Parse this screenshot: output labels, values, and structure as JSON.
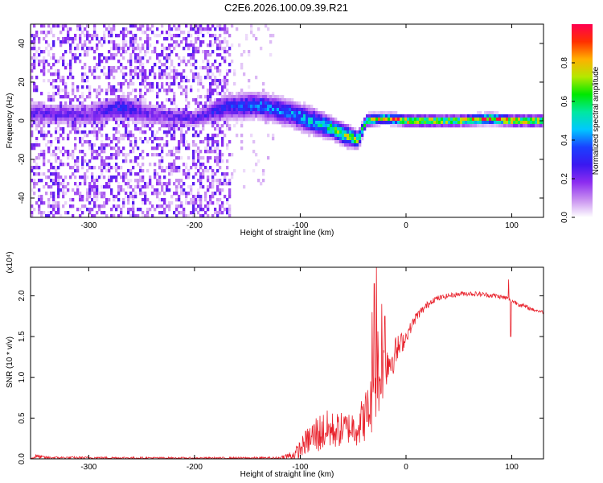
{
  "figure_title": "C2E6.2026.100.09.39.R21",
  "chart_data": [
    {
      "type": "heatmap",
      "title": "C2E6.2026.100.09.39.R21",
      "xlabel": "Height of straight line (km)",
      "ylabel": "Frequency (Hz)",
      "xlim": [
        -355,
        130
      ],
      "ylim": [
        -50,
        50
      ],
      "x_ticks": [
        -300,
        -200,
        -100,
        0,
        100
      ],
      "x_tick_labels": [
        "-300",
        "-200",
        "-100",
        "0",
        "100"
      ],
      "y_ticks": [
        -40,
        -20,
        0,
        20,
        40
      ],
      "y_tick_labels": [
        "-40",
        "-20",
        "0",
        "20",
        "40"
      ],
      "colorbar": {
        "label": "Normalized spectral amplitude",
        "range": [
          0,
          1
        ],
        "ticks": [
          0.0,
          0.2,
          0.4,
          0.6,
          0.8
        ],
        "tick_labels": [
          "0.0",
          "0.2",
          "0.4",
          "0.6",
          "0.8"
        ],
        "colormap": [
          "#ffffff",
          "#c890f0",
          "#8c2cf0",
          "#3a18f0",
          "#1a40ff",
          "#00c8ff",
          "#00e8a0",
          "#00e800",
          "#b4e800",
          "#ffb000",
          "#ff3000",
          "#ff0050"
        ]
      },
      "noise_region": {
        "x_range": [
          -355,
          -165
        ],
        "y_range": [
          -50,
          50
        ],
        "amplitude_range": [
          0.02,
          0.25
        ]
      },
      "sparse_noise_region": {
        "x_range": [
          -165,
          -125
        ],
        "y_range": [
          -35,
          50
        ],
        "amplitude_range": [
          0.02,
          0.08
        ]
      },
      "ridge": {
        "description_points_x": [
          -355,
          -300,
          -270,
          -240,
          -200,
          -170,
          -140,
          -110,
          -90,
          -70,
          -55,
          -45,
          -38,
          -25,
          -10,
          0,
          20,
          50,
          80,
          100,
          130
        ],
        "center_freq": [
          4,
          3,
          7,
          3,
          1,
          7,
          8,
          4,
          0,
          -4,
          -8,
          -10,
          0,
          1,
          1,
          0,
          0,
          0,
          1,
          0,
          0
        ],
        "half_width": [
          4,
          4,
          5,
          4,
          3,
          5,
          5,
          5,
          5,
          4,
          4,
          3,
          2.5,
          2,
          2,
          2,
          2,
          2,
          2,
          2,
          2
        ],
        "peak_amplitude": [
          0.25,
          0.2,
          0.3,
          0.2,
          0.25,
          0.3,
          0.4,
          0.4,
          0.5,
          0.6,
          0.7,
          0.7,
          0.6,
          0.75,
          0.9,
          0.85,
          0.8,
          0.75,
          0.9,
          0.85,
          0.8
        ]
      }
    },
    {
      "type": "line",
      "xlabel": "Height of straight line (km)",
      "ylabel": "SNR (10 * v/v)",
      "scale_label": "(x10⁴)",
      "xlim": [
        -355,
        130
      ],
      "ylim": [
        0,
        23500
      ],
      "x_ticks": [
        -300,
        -200,
        -100,
        0,
        100
      ],
      "x_tick_labels": [
        "-300",
        "-200",
        "-100",
        "0",
        "100"
      ],
      "y_ticks": [
        0,
        5000,
        10000,
        15000,
        20000
      ],
      "y_tick_labels": [
        "0.0",
        "0.5",
        "1.0",
        "1.5",
        "2.0"
      ],
      "series": [
        {
          "color": "#e8202a",
          "envelope_x": [
            -355,
            -350,
            -340,
            -200,
            -120,
            -105,
            -95,
            -85,
            -75,
            -65,
            -55,
            -45,
            -35,
            -30,
            -27,
            -25,
            -20,
            -15,
            -10,
            -5,
            0,
            10,
            25,
            40,
            55,
            70,
            85,
            95,
            100,
            110,
            120,
            130
          ],
          "envelope_mid": [
            0,
            300,
            150,
            100,
            100,
            500,
            2000,
            3000,
            3500,
            3500,
            3800,
            4000,
            6000,
            8000,
            12000,
            9000,
            12000,
            12000,
            13000,
            14000,
            15000,
            17500,
            19500,
            20000,
            20300,
            20200,
            20000,
            19700,
            19400,
            18800,
            18300,
            18000
          ],
          "envelope_amp": [
            100,
            300,
            150,
            100,
            150,
            800,
            1500,
            2500,
            2500,
            2200,
            2000,
            2500,
            3500,
            5000,
            6000,
            5000,
            3500,
            2500,
            2000,
            1500,
            800,
            600,
            400,
            300,
            300,
            300,
            300,
            300,
            300,
            300,
            200,
            200
          ],
          "spikes": [
            {
              "x": -28,
              "y": 23500
            },
            {
              "x": -30,
              "y": 21500
            },
            {
              "x": -32,
              "y": 18000
            },
            {
              "x": -23,
              "y": 19000
            },
            {
              "x": -20,
              "y": 17500
            },
            {
              "x": 97,
              "y": 22000
            },
            {
              "x": 99,
              "y": 15000
            }
          ]
        }
      ]
    }
  ]
}
